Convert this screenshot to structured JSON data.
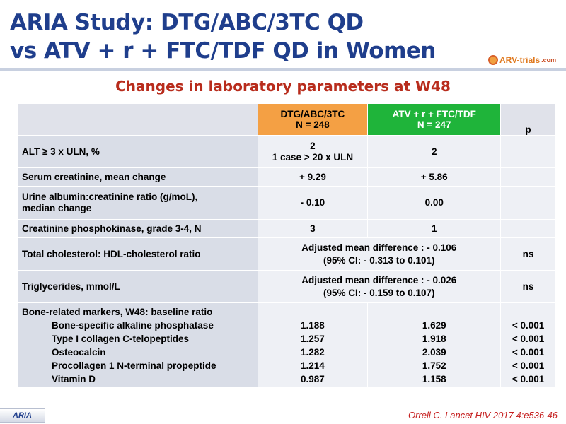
{
  "slide": {
    "title_line1": "ARIA Study: DTG/ABC/3TC QD",
    "title_line2": "vs ATV + r + FTC/TDF QD in Women",
    "logo_text": "ARV-trials",
    "logo_tld": ".com",
    "subtitle": "Changes in laboratory parameters at W48",
    "footer_tag": "ARIA",
    "reference": "Orrell C. Lancet HIV 2017 4:e536-46"
  },
  "table": {
    "headers": {
      "dtg_name": "DTG/ABC/3TC",
      "dtg_n": "N = 248",
      "atv_name": "ATV + r + FTC/TDF",
      "atv_n": "N = 247",
      "p": "p"
    },
    "rows": {
      "alt": {
        "label": "ALT ≥ 3 x ULN, %",
        "dtg_line1": "2",
        "dtg_line2": "1 case > 20 x ULN",
        "atv": "2",
        "p": ""
      },
      "creat": {
        "label": "Serum creatinine, mean change",
        "dtg": "+ 9.29",
        "atv": "+ 5.86",
        "p": ""
      },
      "urine": {
        "label_line1": "Urine albumin:creatinine ratio (g/moL),",
        "label_line2": "median change",
        "dtg": "- 0.10",
        "atv": "0.00",
        "p": ""
      },
      "cpk": {
        "label": "Creatinine phosphokinase, grade 3-4, N",
        "dtg": "3",
        "atv": "1",
        "p": ""
      },
      "chol": {
        "label": "Total cholesterol: HDL-cholesterol ratio",
        "merged_line1": "Adjusted mean difference : - 0.106",
        "merged_line2": "(95% CI: - 0.313 to 0.101)",
        "p": "ns"
      },
      "trig": {
        "label": "Triglycerides, mmol/L",
        "merged_line1": "Adjusted mean difference : - 0.026",
        "merged_line2": "(95% CI: - 0.159 to 0.107)",
        "p": "ns"
      },
      "bone": {
        "label": "Bone-related markers, W48: baseline ratio",
        "items": [
          {
            "name": "Bone-specific alkaline phosphatase",
            "dtg": "1.188",
            "atv": "1.629",
            "p": "< 0.001"
          },
          {
            "name": "Type I collagen C-telopeptides",
            "dtg": "1.257",
            "atv": "1.918",
            "p": "< 0.001"
          },
          {
            "name": "Osteocalcin",
            "dtg": "1.282",
            "atv": "2.039",
            "p": "< 0.001"
          },
          {
            "name": "Procollagen 1 N-terminal propeptide",
            "dtg": "1.214",
            "atv": "1.752",
            "p": "< 0.001"
          },
          {
            "name": "Vitamin D",
            "dtg": "0.987",
            "atv": "1.158",
            "p": "< 0.001"
          }
        ]
      }
    }
  }
}
